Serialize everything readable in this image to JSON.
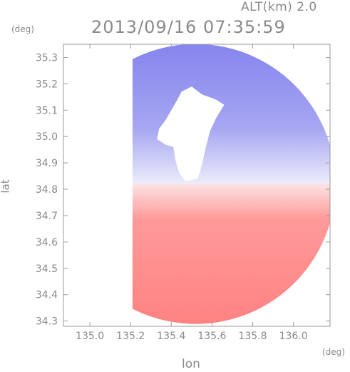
{
  "chart_data": {
    "type": "heatmap",
    "title": "2013/09/16 07:35:59",
    "subtitle": "ALT(km) 2.0",
    "xlabel": "lon",
    "ylabel": "lat",
    "x_unit": "(deg)",
    "y_unit": "(deg)",
    "xlim": [
      134.87,
      136.18
    ],
    "ylim": [
      34.28,
      35.35
    ],
    "x_ticks": [
      135.0,
      135.2,
      135.4,
      135.6,
      135.8,
      136.0
    ],
    "x_tick_labels": [
      "135.0",
      "135.2",
      "135.4",
      "135.6",
      "135.8",
      "136.0"
    ],
    "y_ticks": [
      34.3,
      34.4,
      34.5,
      34.6,
      34.7,
      34.8,
      34.9,
      35.0,
      35.1,
      35.2,
      35.3
    ],
    "y_tick_labels": [
      "34.3",
      "34.4",
      "34.5",
      "34.6",
      "34.7",
      "34.8",
      "34.9",
      "35.0",
      "35.1",
      "35.2",
      "35.3"
    ],
    "radar_center": {
      "lon": 135.52,
      "lat": 34.82
    },
    "regions": [
      {
        "name": "northern sector (negative)",
        "color": "#8c8cf0"
      },
      {
        "name": "southern sector (positive)",
        "color": "#ff8585"
      },
      {
        "name": "no data",
        "color": "#ffffff"
      }
    ],
    "grid": false
  },
  "colors": {
    "negative": "#8c8cf0",
    "positive": "#ff8585",
    "axis": "#9a9a9a"
  }
}
